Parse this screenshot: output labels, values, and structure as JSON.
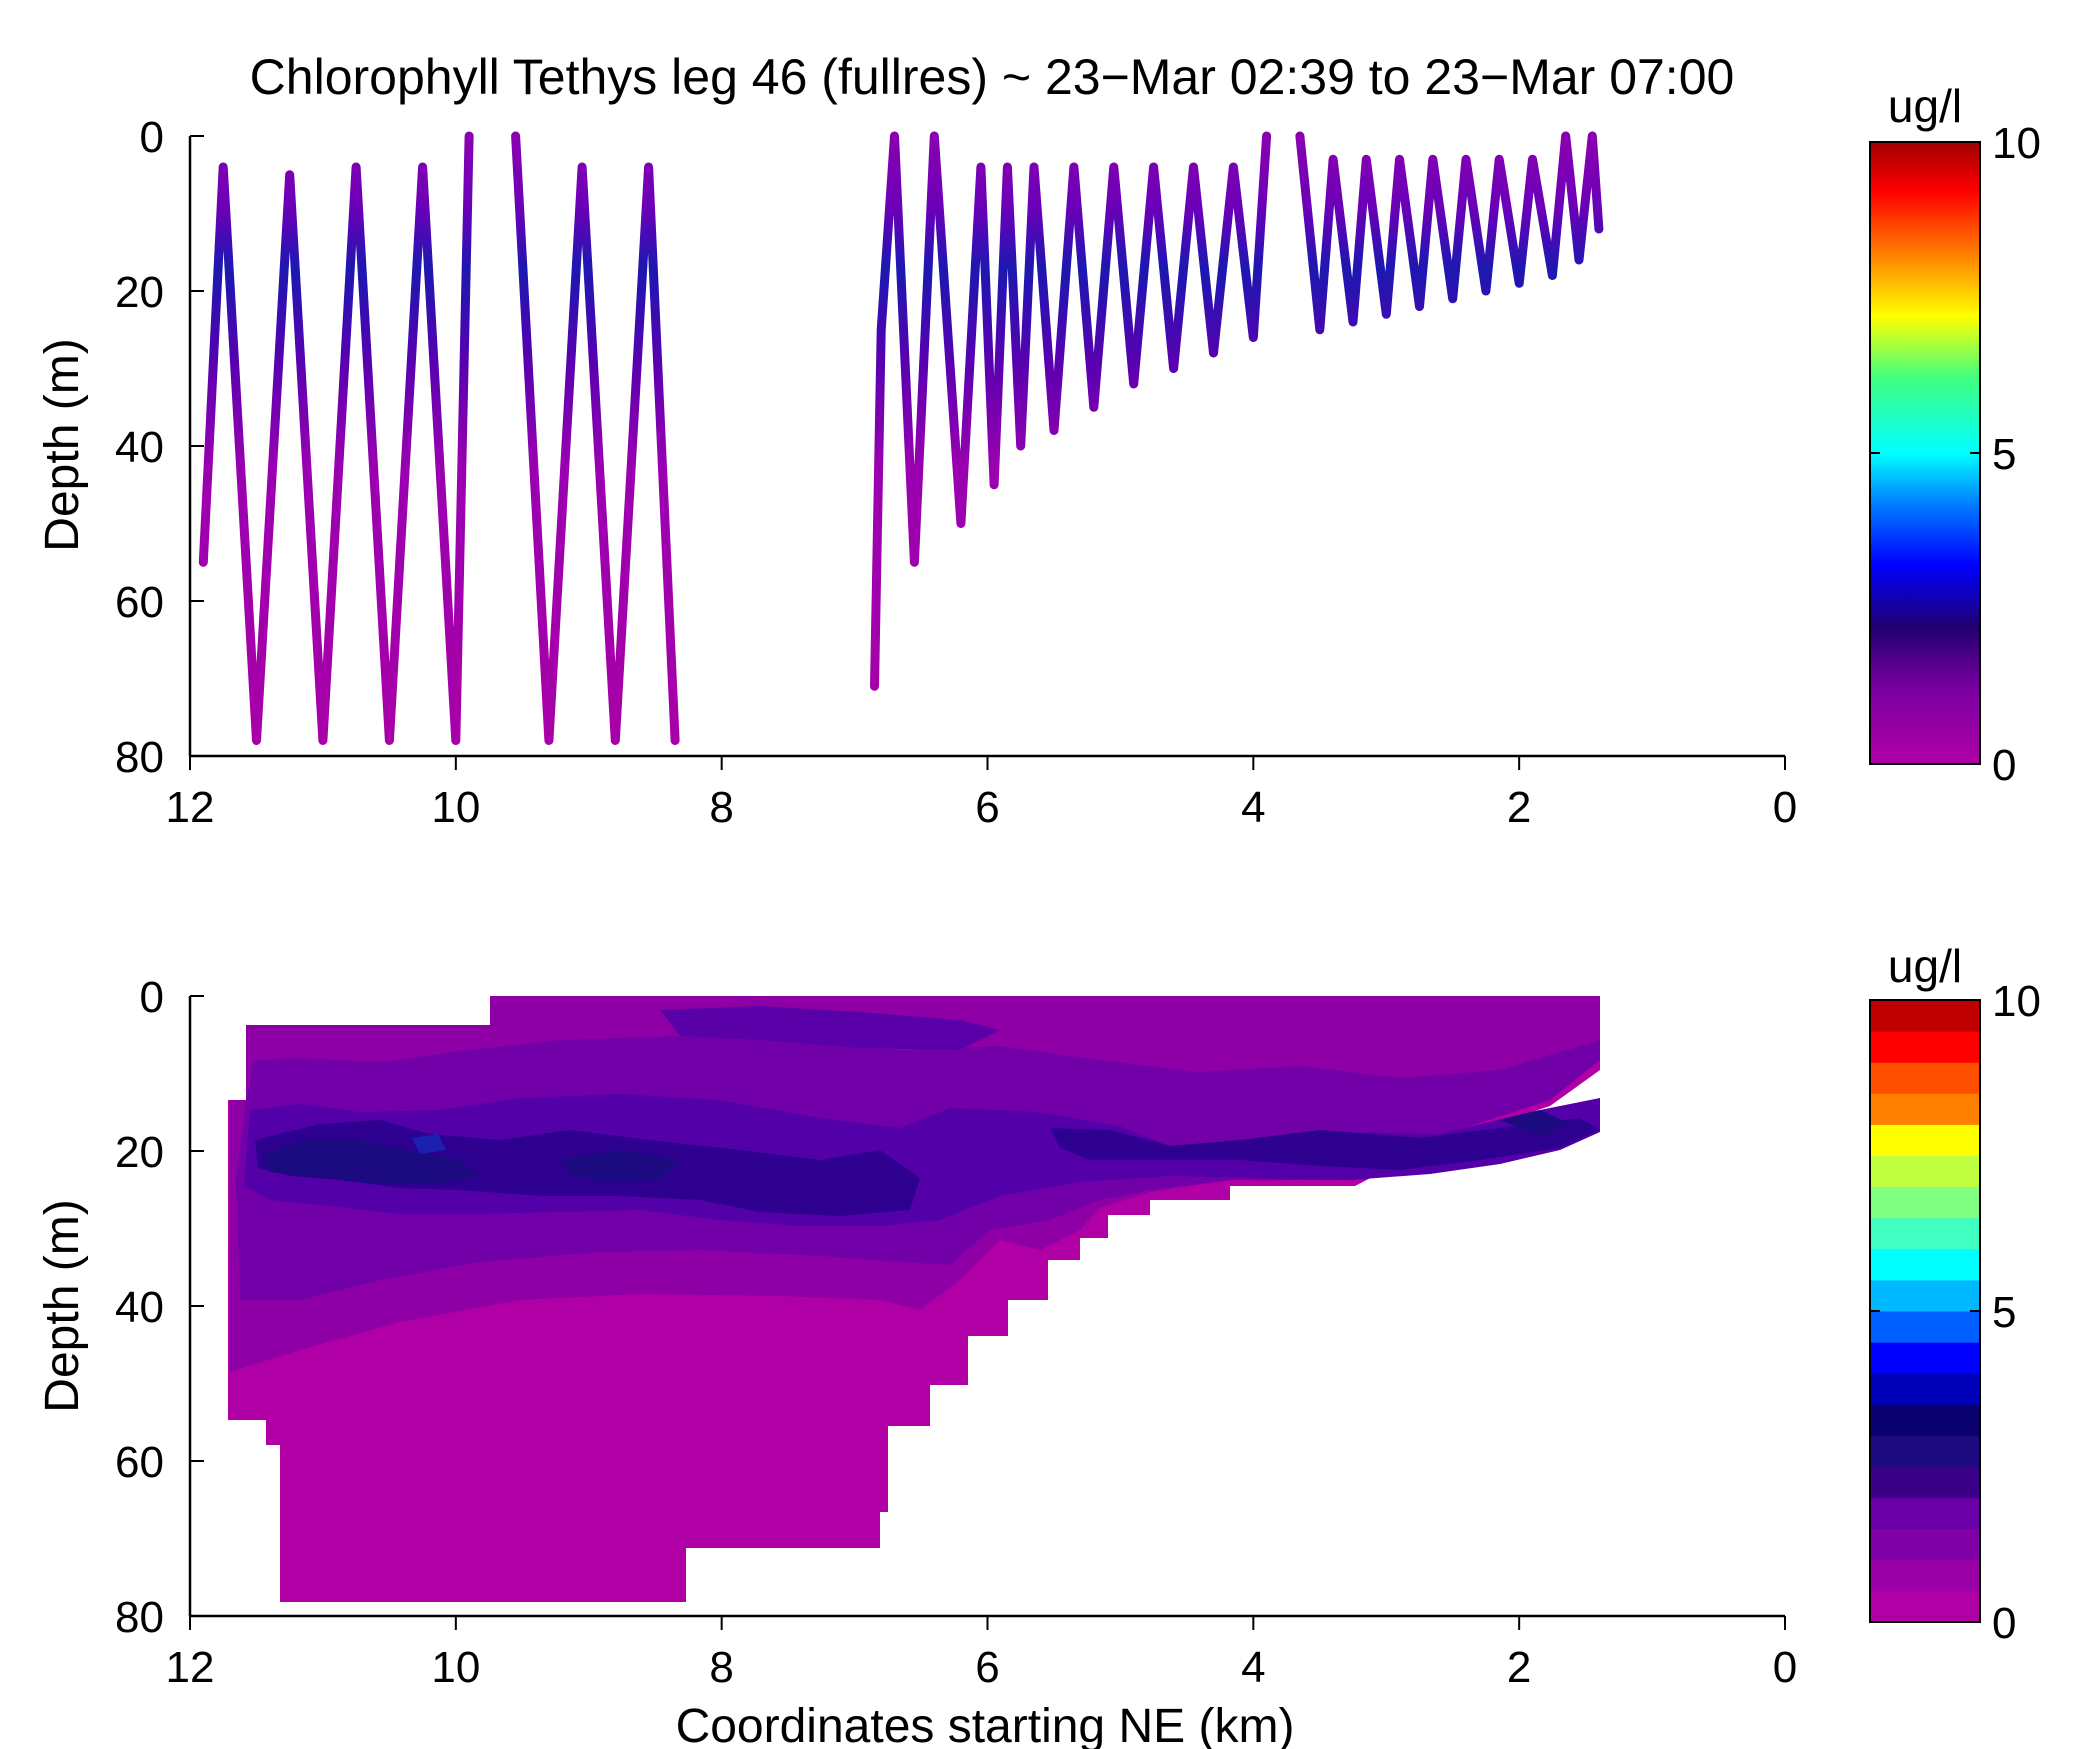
{
  "chart_data": [
    {
      "type": "line",
      "title": "Chlorophyll Tethys leg 46 (fullres) ~ 23−Mar 02:39 to 23−Mar 07:00",
      "xlabel": "",
      "ylabel": "Depth (m)",
      "xlim": [
        12,
        0
      ],
      "ylim": [
        0,
        80
      ],
      "y_reversed": true,
      "x_reversed": true,
      "xticks": [
        "12",
        "10",
        "8",
        "6",
        "4",
        "2",
        "0"
      ],
      "yticks": [
        "0",
        "20",
        "40",
        "60",
        "80"
      ],
      "grid": false,
      "colorbar": {
        "label": "ug/l",
        "min": 0,
        "max": 10,
        "ticks": [
          "0",
          "5",
          "10"
        ],
        "colormap": "continuous"
      },
      "series": [
        {
          "points": [
            [
              11.9,
              55
            ],
            [
              11.75,
              4
            ],
            [
              11.5,
              78
            ],
            [
              11.25,
              5
            ],
            [
              11.0,
              78
            ],
            [
              10.75,
              4
            ],
            [
              10.5,
              78
            ],
            [
              10.25,
              4
            ],
            [
              10.0,
              78
            ],
            [
              9.9,
              0
            ]
          ]
        },
        {
          "points": [
            [
              9.55,
              0
            ],
            [
              9.3,
              78
            ],
            [
              9.05,
              4
            ],
            [
              8.8,
              78
            ],
            [
              8.55,
              4
            ],
            [
              8.35,
              78
            ]
          ]
        },
        {
          "points": [
            [
              6.85,
              71
            ],
            [
              6.8,
              25
            ],
            [
              6.7,
              0
            ],
            [
              6.55,
              55
            ],
            [
              6.4,
              0
            ],
            [
              6.2,
              50
            ],
            [
              6.05,
              4
            ],
            [
              5.95,
              45
            ],
            [
              5.85,
              4
            ],
            [
              5.75,
              40
            ],
            [
              5.65,
              4
            ],
            [
              5.5,
              38
            ],
            [
              5.35,
              4
            ],
            [
              5.2,
              35
            ],
            [
              5.05,
              4
            ],
            [
              4.9,
              32
            ],
            [
              4.75,
              4
            ],
            [
              4.6,
              30
            ],
            [
              4.45,
              4
            ],
            [
              4.3,
              28
            ],
            [
              4.15,
              4
            ],
            [
              4.0,
              26
            ],
            [
              3.9,
              0
            ]
          ]
        },
        {
          "points": [
            [
              3.65,
              0
            ],
            [
              3.5,
              25
            ],
            [
              3.4,
              3
            ],
            [
              3.25,
              24
            ],
            [
              3.15,
              3
            ],
            [
              3.0,
              23
            ],
            [
              2.9,
              3
            ],
            [
              2.75,
              22
            ],
            [
              2.65,
              3
            ],
            [
              2.5,
              21
            ],
            [
              2.4,
              3
            ],
            [
              2.25,
              20
            ],
            [
              2.15,
              3
            ],
            [
              2.0,
              19
            ],
            [
              1.9,
              3
            ],
            [
              1.75,
              18
            ],
            [
              1.65,
              0
            ],
            [
              1.55,
              16
            ],
            [
              1.45,
              0
            ],
            [
              1.4,
              12
            ]
          ]
        }
      ]
    },
    {
      "type": "heatmap",
      "title": "",
      "xlabel": "Coordinates starting NE (km)",
      "ylabel": "Depth (m)",
      "xlim": [
        12,
        0
      ],
      "ylim": [
        0,
        80
      ],
      "y_reversed": true,
      "x_reversed": true,
      "xticks": [
        "12",
        "10",
        "8",
        "6",
        "4",
        "2",
        "0"
      ],
      "yticks": [
        "0",
        "20",
        "40",
        "60",
        "80"
      ],
      "grid": false,
      "colorbar": {
        "label": "ug/l",
        "min": 0,
        "max": 10,
        "ticks": [
          "0",
          "5",
          "10"
        ],
        "levels": 20,
        "colormap": "contour"
      }
    }
  ]
}
